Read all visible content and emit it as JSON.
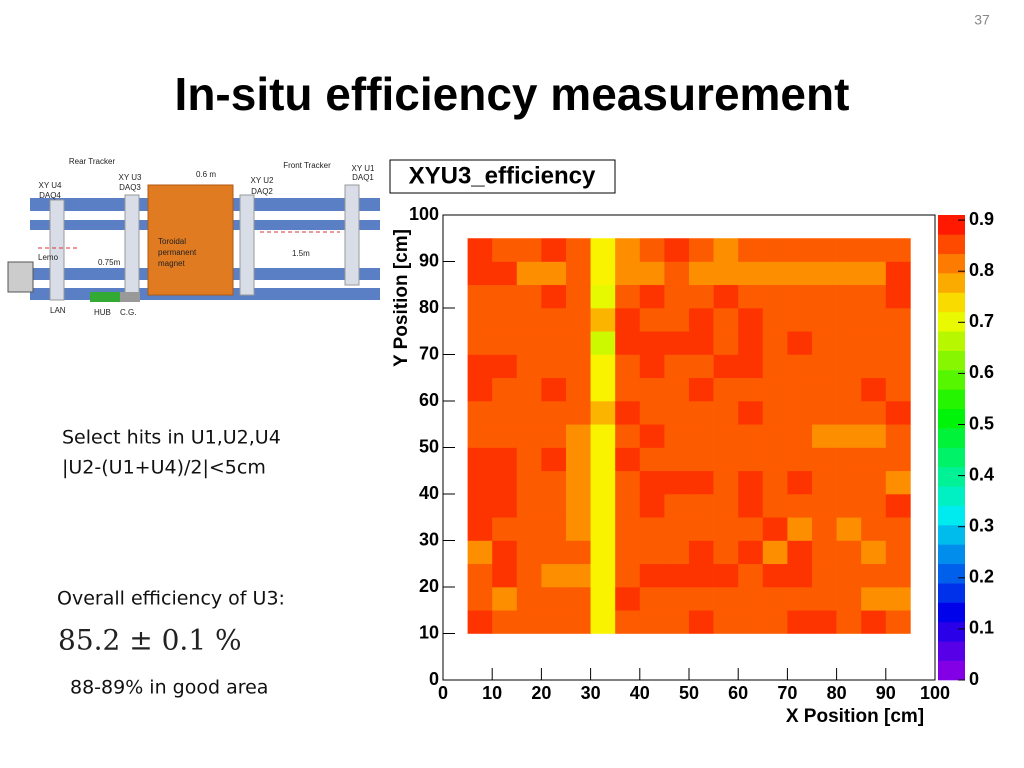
{
  "page_number": "37",
  "title": "In-situ efficiency measurement",
  "diagram": {
    "labels": [
      "Rear Tracker",
      "0.6 m",
      "Front Tracker",
      "XY U1",
      "DAQ1",
      "XY U4",
      "DAQ4",
      "XY U3",
      "DAQ3",
      "XY U2",
      "DAQ2",
      "Toroidal",
      "permanent",
      "magnet",
      "Lemo",
      "0.75m",
      "1.5m",
      "LAN",
      "HUB",
      "C.G."
    ]
  },
  "notes": [
    "Select hits in U1,U2,U4",
    "|U2-(U1+U4)/2|<5cm",
    "Overall efficiency of U3:",
    "85.2 ± 0.1 %",
    "88-89% in good area"
  ],
  "chart_data": {
    "type": "heatmap",
    "title": "XYU3_efficiency",
    "x_label": "X Position [cm]",
    "y_label": "Y Position [cm]",
    "x_bins": [
      5,
      10,
      15,
      20,
      25,
      30,
      35,
      40,
      45,
      50,
      55,
      60,
      65,
      70,
      75,
      80,
      85,
      90,
      95
    ],
    "y_bins": [
      10,
      15,
      20,
      25,
      30,
      35,
      40,
      45,
      50,
      55,
      60,
      65,
      70,
      75,
      80,
      85,
      90,
      95
    ],
    "values": [
      [
        0.87,
        0.84,
        0.84,
        0.84,
        0.84,
        0.72,
        0.84,
        0.84,
        0.84,
        0.87,
        0.84,
        0.84,
        0.84,
        0.87,
        0.87,
        0.84,
        0.87,
        0.84
      ],
      [
        0.84,
        0.8,
        0.84,
        0.84,
        0.84,
        0.72,
        0.87,
        0.84,
        0.84,
        0.84,
        0.84,
        0.84,
        0.84,
        0.84,
        0.84,
        0.84,
        0.8,
        0.8
      ],
      [
        0.84,
        0.87,
        0.84,
        0.8,
        0.8,
        0.72,
        0.84,
        0.87,
        0.87,
        0.87,
        0.87,
        0.84,
        0.87,
        0.87,
        0.84,
        0.84,
        0.84,
        0.84
      ],
      [
        0.8,
        0.87,
        0.84,
        0.84,
        0.84,
        0.72,
        0.84,
        0.84,
        0.84,
        0.87,
        0.84,
        0.87,
        0.8,
        0.87,
        0.84,
        0.84,
        0.8,
        0.84
      ],
      [
        0.87,
        0.84,
        0.84,
        0.84,
        0.8,
        0.72,
        0.84,
        0.84,
        0.84,
        0.84,
        0.84,
        0.84,
        0.87,
        0.8,
        0.84,
        0.8,
        0.84,
        0.84
      ],
      [
        0.87,
        0.87,
        0.84,
        0.84,
        0.8,
        0.72,
        0.84,
        0.87,
        0.84,
        0.84,
        0.84,
        0.87,
        0.84,
        0.84,
        0.84,
        0.84,
        0.84,
        0.87
      ],
      [
        0.87,
        0.87,
        0.84,
        0.84,
        0.8,
        0.72,
        0.84,
        0.87,
        0.87,
        0.87,
        0.84,
        0.87,
        0.84,
        0.87,
        0.84,
        0.84,
        0.84,
        0.8
      ],
      [
        0.87,
        0.87,
        0.84,
        0.87,
        0.8,
        0.72,
        0.87,
        0.84,
        0.84,
        0.84,
        0.84,
        0.84,
        0.84,
        0.84,
        0.84,
        0.84,
        0.84,
        0.84
      ],
      [
        0.84,
        0.84,
        0.84,
        0.84,
        0.8,
        0.72,
        0.84,
        0.87,
        0.84,
        0.84,
        0.84,
        0.84,
        0.84,
        0.84,
        0.8,
        0.8,
        0.8,
        0.84
      ],
      [
        0.84,
        0.84,
        0.84,
        0.84,
        0.84,
        0.77,
        0.87,
        0.84,
        0.84,
        0.84,
        0.84,
        0.87,
        0.84,
        0.84,
        0.84,
        0.84,
        0.84,
        0.87
      ],
      [
        0.87,
        0.84,
        0.84,
        0.87,
        0.84,
        0.72,
        0.84,
        0.84,
        0.84,
        0.87,
        0.84,
        0.84,
        0.84,
        0.84,
        0.84,
        0.84,
        0.87,
        0.84
      ],
      [
        0.87,
        0.87,
        0.84,
        0.84,
        0.84,
        0.72,
        0.84,
        0.87,
        0.84,
        0.84,
        0.87,
        0.87,
        0.84,
        0.84,
        0.84,
        0.84,
        0.84,
        0.84
      ],
      [
        0.84,
        0.84,
        0.84,
        0.84,
        0.84,
        0.68,
        0.87,
        0.87,
        0.87,
        0.87,
        0.84,
        0.87,
        0.84,
        0.87,
        0.84,
        0.84,
        0.84,
        0.84
      ],
      [
        0.84,
        0.84,
        0.84,
        0.84,
        0.84,
        0.77,
        0.87,
        0.84,
        0.84,
        0.87,
        0.84,
        0.87,
        0.84,
        0.84,
        0.84,
        0.84,
        0.84,
        0.84
      ],
      [
        0.84,
        0.84,
        0.84,
        0.87,
        0.84,
        0.7,
        0.84,
        0.87,
        0.84,
        0.84,
        0.87,
        0.84,
        0.84,
        0.84,
        0.84,
        0.84,
        0.84,
        0.87
      ],
      [
        0.87,
        0.87,
        0.8,
        0.8,
        0.84,
        0.72,
        0.8,
        0.8,
        0.84,
        0.8,
        0.8,
        0.8,
        0.8,
        0.8,
        0.8,
        0.8,
        0.8,
        0.87
      ],
      [
        0.87,
        0.84,
        0.84,
        0.87,
        0.84,
        0.72,
        0.8,
        0.84,
        0.87,
        0.84,
        0.8,
        0.84,
        0.84,
        0.84,
        0.84,
        0.84,
        0.84,
        0.84
      ]
    ],
    "xlim": [
      0,
      100
    ],
    "ylim": [
      0,
      100
    ],
    "zlim": [
      0,
      0.91
    ],
    "xticks": [
      0,
      10,
      20,
      30,
      40,
      50,
      60,
      70,
      80,
      90,
      100
    ],
    "yticks": [
      0,
      10,
      20,
      30,
      40,
      50,
      60,
      70,
      80,
      90,
      100
    ],
    "zticks": [
      0,
      0.1,
      0.2,
      0.3,
      0.4,
      0.5,
      0.6,
      0.7,
      0.8,
      0.9
    ],
    "colormap": "rainbow"
  }
}
